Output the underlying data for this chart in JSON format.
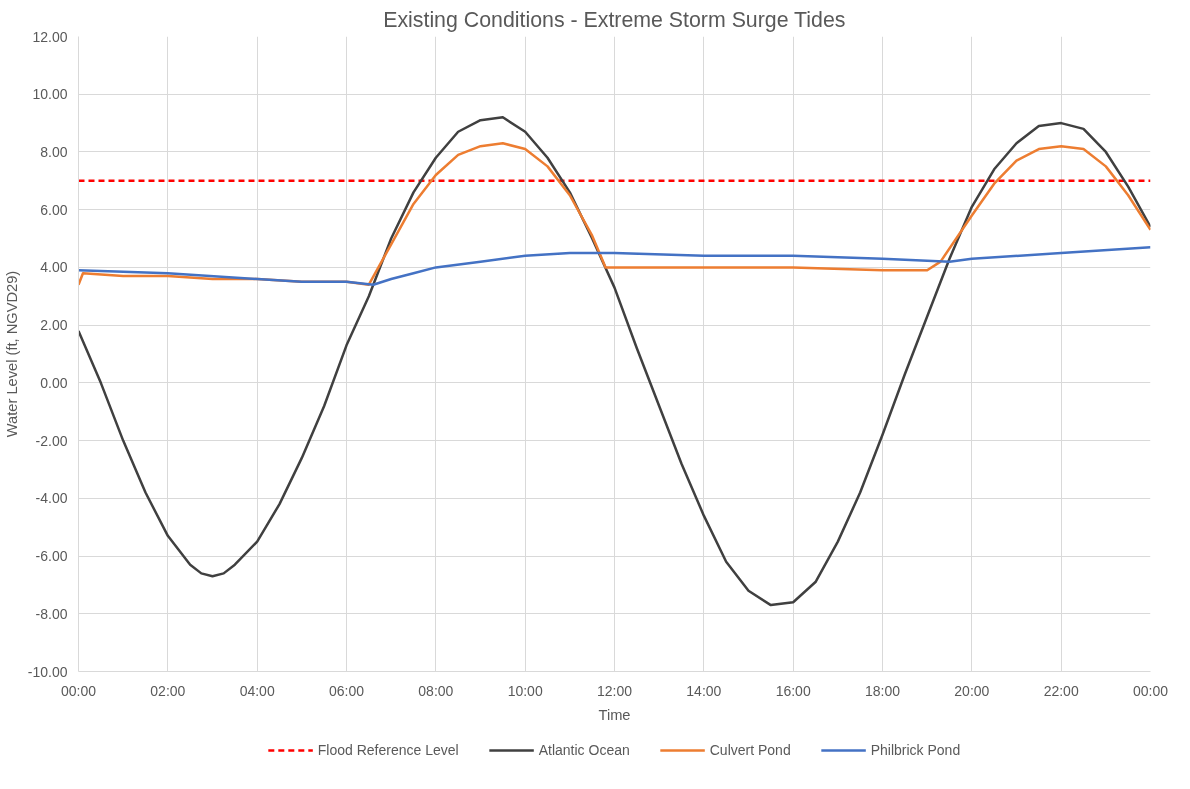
{
  "chart_data": {
    "type": "line",
    "title": "Existing Conditions - Extreme Storm Surge Tides",
    "xlabel": "Time",
    "ylabel": "Water Level (ft, NGVD29)",
    "xlim": [
      0,
      24
    ],
    "xticks": [
      {
        "value": 0,
        "label": "00:00"
      },
      {
        "value": 2,
        "label": "02:00"
      },
      {
        "value": 4,
        "label": "04:00"
      },
      {
        "value": 6,
        "label": "06:00"
      },
      {
        "value": 8,
        "label": "08:00"
      },
      {
        "value": 10,
        "label": "10:00"
      },
      {
        "value": 12,
        "label": "12:00"
      },
      {
        "value": 14,
        "label": "14:00"
      },
      {
        "value": 16,
        "label": "16:00"
      },
      {
        "value": 18,
        "label": "18:00"
      },
      {
        "value": 20,
        "label": "20:00"
      },
      {
        "value": 22,
        "label": "22:00"
      },
      {
        "value": 24,
        "label": "00:00"
      }
    ],
    "ylim": [
      -10,
      12
    ],
    "yticks": [
      {
        "value": -10,
        "label": "-10.00"
      },
      {
        "value": -8,
        "label": "-8.00"
      },
      {
        "value": -6,
        "label": "-6.00"
      },
      {
        "value": -4,
        "label": "-4.00"
      },
      {
        "value": -2,
        "label": "-2.00"
      },
      {
        "value": 0,
        "label": "0.00"
      },
      {
        "value": 2,
        "label": "2.00"
      },
      {
        "value": 4,
        "label": "4.00"
      },
      {
        "value": 6,
        "label": "6.00"
      },
      {
        "value": 8,
        "label": "8.00"
      },
      {
        "value": 10,
        "label": "10.00"
      },
      {
        "value": 12,
        "label": "12.00"
      }
    ],
    "grid": true,
    "legend": "bottom",
    "marker": "none",
    "series": [
      {
        "name": "Flood Reference Level",
        "color": "#ff0000",
        "line_style": "dashed",
        "x": [
          0,
          24
        ],
        "values": [
          7,
          7
        ]
      },
      {
        "name": "Atlantic Ocean",
        "color": "#404040",
        "line_style": "solid",
        "x": [
          0,
          0.5,
          1,
          1.5,
          2,
          2.5,
          2.75,
          3,
          3.25,
          3.5,
          4,
          4.5,
          5,
          5.5,
          6,
          6.5,
          7,
          7.5,
          8,
          8.5,
          9,
          9.5,
          10,
          10.5,
          11,
          11.5,
          12,
          12.5,
          13,
          13.5,
          14,
          14.5,
          15,
          15.5,
          16,
          16.5,
          17,
          17.5,
          18,
          18.5,
          19,
          19.5,
          20,
          20.5,
          21,
          21.5,
          22,
          22.5,
          23,
          23.5,
          24
        ],
        "values": [
          1.8,
          0.0,
          -2.0,
          -3.8,
          -5.3,
          -6.3,
          -6.6,
          -6.7,
          -6.6,
          -6.3,
          -5.5,
          -4.2,
          -2.6,
          -0.8,
          1.3,
          3.0,
          5.0,
          6.6,
          7.8,
          8.7,
          9.1,
          9.2,
          8.7,
          7.8,
          6.6,
          5.0,
          3.3,
          1.2,
          -0.8,
          -2.8,
          -4.6,
          -6.2,
          -7.2,
          -7.7,
          -7.6,
          -6.9,
          -5.5,
          -3.8,
          -1.8,
          0.3,
          2.3,
          4.3,
          6.1,
          7.4,
          8.3,
          8.9,
          9.0,
          8.8,
          8.0,
          6.8,
          5.4
        ]
      },
      {
        "name": "Culvert Pond",
        "color": "#ed7d31",
        "line_style": "solid",
        "x": [
          0,
          0.1,
          1,
          2,
          3,
          4,
          5,
          6,
          6.5,
          7,
          7.5,
          8,
          8.5,
          9,
          9.5,
          10,
          10.5,
          11,
          11.5,
          11.8,
          12,
          14,
          16,
          18,
          19,
          19.3,
          20,
          20.5,
          21,
          21.5,
          22,
          22.5,
          23,
          23.5,
          24
        ],
        "values": [
          3.4,
          3.8,
          3.7,
          3.7,
          3.6,
          3.6,
          3.5,
          3.5,
          3.4,
          4.8,
          6.2,
          7.2,
          7.9,
          8.2,
          8.3,
          8.1,
          7.5,
          6.5,
          5.1,
          4.0,
          4.0,
          4.0,
          4.0,
          3.9,
          3.9,
          4.2,
          5.8,
          6.9,
          7.7,
          8.1,
          8.2,
          8.1,
          7.5,
          6.5,
          5.3
        ]
      },
      {
        "name": "Philbrick Pond",
        "color": "#4472c4",
        "line_style": "solid",
        "x": [
          0,
          2,
          4,
          5,
          6,
          6.6,
          7,
          7.5,
          8,
          9,
          10,
          11,
          12,
          14,
          16,
          18,
          19.5,
          20,
          22,
          24
        ],
        "values": [
          3.9,
          3.8,
          3.6,
          3.5,
          3.5,
          3.4,
          3.6,
          3.8,
          4.0,
          4.2,
          4.4,
          4.5,
          4.5,
          4.4,
          4.4,
          4.3,
          4.2,
          4.3,
          4.5,
          4.7
        ]
      }
    ]
  }
}
